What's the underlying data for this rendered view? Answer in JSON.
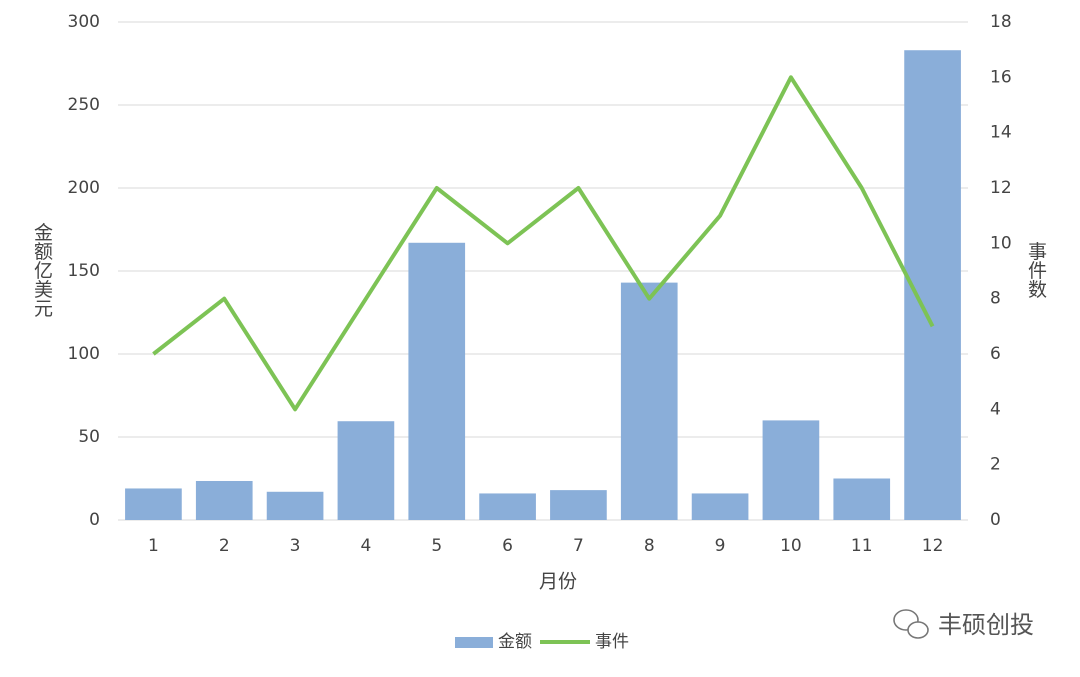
{
  "chart_data": {
    "type": "bar_line",
    "x_label": "月份",
    "y_label": "金额亿美元",
    "y2_label": "事件数",
    "categories": [
      "1",
      "2",
      "3",
      "4",
      "5",
      "6",
      "7",
      "8",
      "9",
      "10",
      "11",
      "12"
    ],
    "series": [
      {
        "name": "金额",
        "type": "bar",
        "color": "#8aaed9",
        "values": [
          19,
          23.5,
          17,
          59.5,
          167,
          16,
          18,
          143,
          16,
          60,
          25,
          283
        ]
      },
      {
        "name": "事件",
        "type": "line",
        "axis": "y2",
        "color": "#7dc355",
        "values": [
          6,
          8,
          4,
          8,
          12,
          10,
          12,
          8,
          11,
          16,
          12,
          7
        ]
      }
    ],
    "ylim": [
      0,
      300
    ],
    "yticks": [
      0,
      50,
      100,
      150,
      200,
      250,
      300
    ],
    "y2lim": [
      0,
      18
    ],
    "y2ticks": [
      0,
      2,
      4,
      6,
      8,
      10,
      12,
      14,
      16,
      18
    ],
    "grid": true,
    "legend": "bottom"
  },
  "watermark": "丰硕创投"
}
